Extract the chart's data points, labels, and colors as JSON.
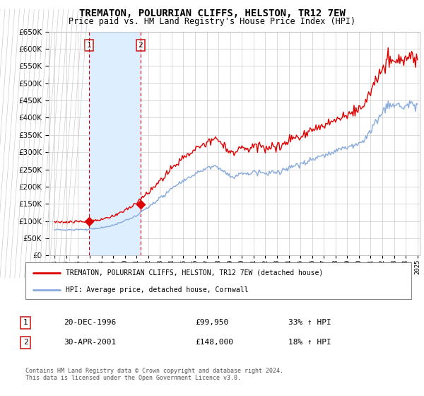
{
  "title": "TREMATON, POLURRIAN CLIFFS, HELSTON, TR12 7EW",
  "subtitle": "Price paid vs. HM Land Registry's House Price Index (HPI)",
  "legend_line1": "TREMATON, POLURRIAN CLIFFS, HELSTON, TR12 7EW (detached house)",
  "legend_line2": "HPI: Average price, detached house, Cornwall",
  "sale1_date": "20-DEC-1996",
  "sale1_price": "£99,950",
  "sale1_hpi": "33% ↑ HPI",
  "sale1_year": 1996.96,
  "sale1_value": 99950,
  "sale2_date": "30-APR-2001",
  "sale2_price": "£148,000",
  "sale2_hpi": "18% ↑ HPI",
  "sale2_year": 2001.33,
  "sale2_value": 148000,
  "ylim": [
    0,
    650000
  ],
  "yticks": [
    0,
    50000,
    100000,
    150000,
    200000,
    250000,
    300000,
    350000,
    400000,
    450000,
    500000,
    550000,
    600000,
    650000
  ],
  "price_line_color": "#dd0000",
  "hpi_line_color": "#88aadd",
  "shade_color": "#ddeeff",
  "grid_color": "#cccccc",
  "background_color": "#ffffff",
  "hatch_color": "#e8e8e8",
  "footer": "Contains HM Land Registry data © Crown copyright and database right 2024.\nThis data is licensed under the Open Government Licence v3.0."
}
